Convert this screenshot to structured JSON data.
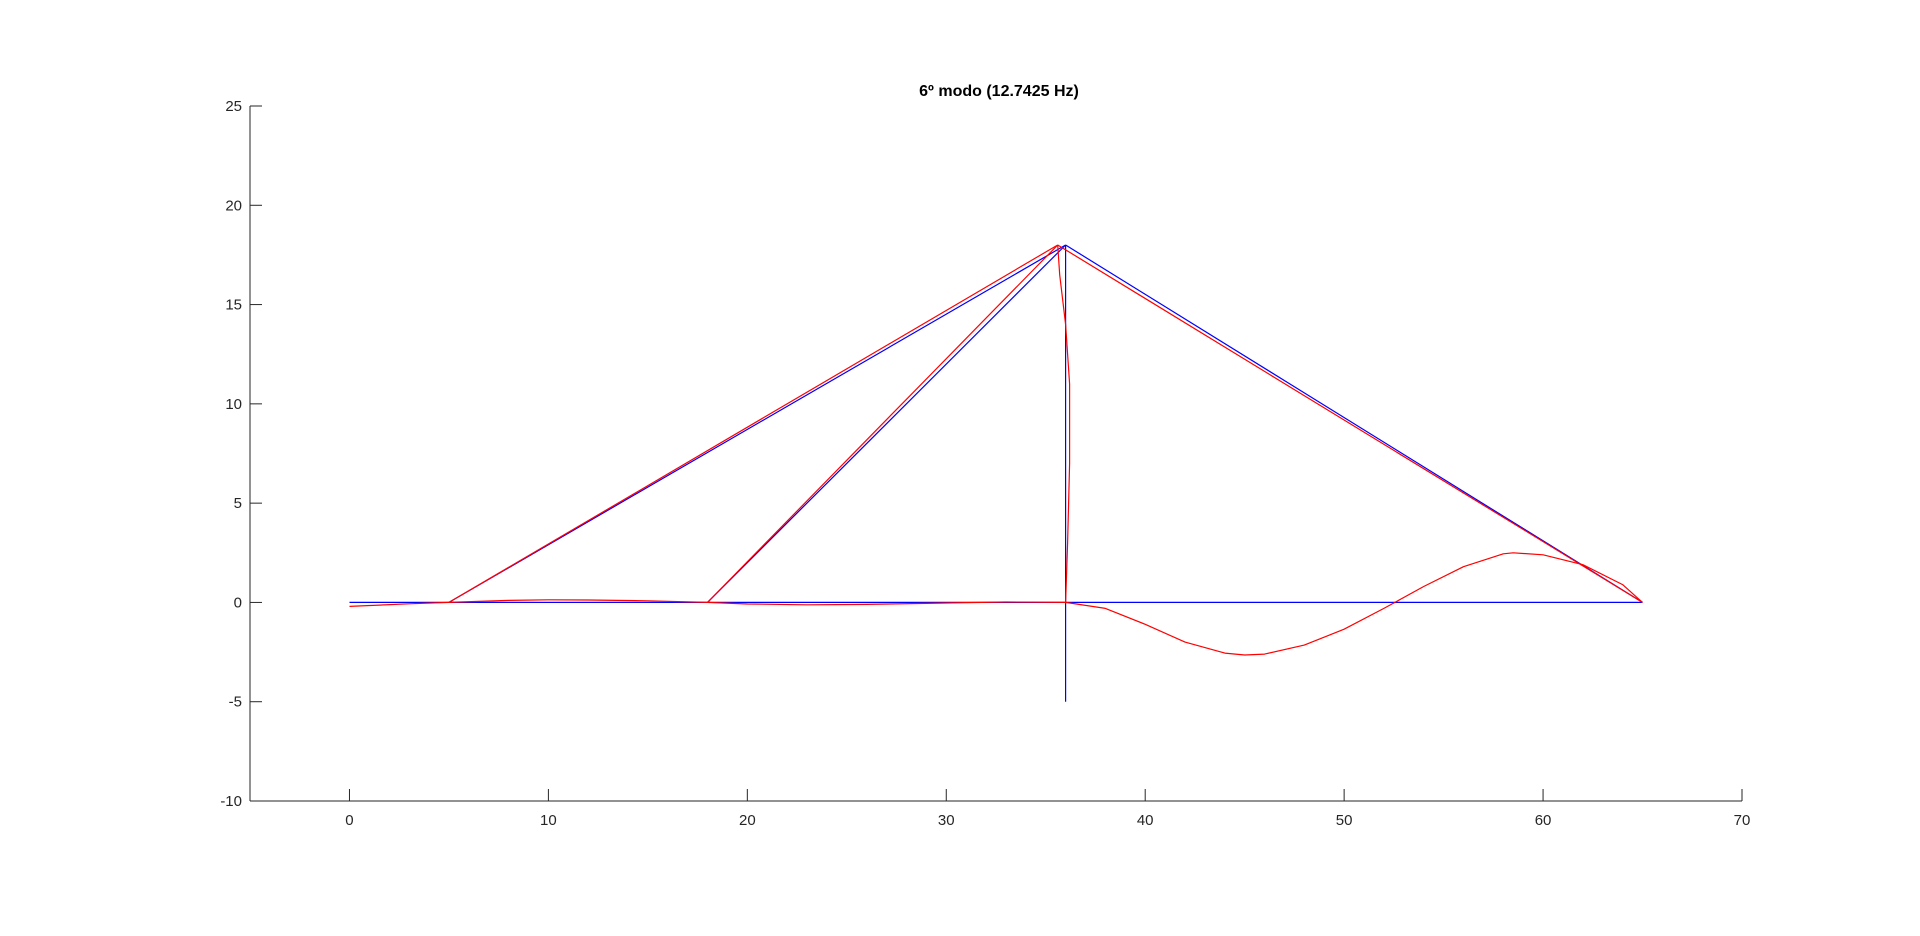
{
  "chart_data": {
    "type": "line",
    "title": "6º modo (12.7425 Hz)",
    "xlabel": "",
    "ylabel": "",
    "xlim": [
      -5,
      70
    ],
    "ylim": [
      -10,
      25
    ],
    "x_ticks": [
      "0",
      "10",
      "20",
      "30",
      "40",
      "50",
      "60",
      "70"
    ],
    "y_ticks": [
      "25",
      "20",
      "15",
      "10",
      "5",
      "0",
      "-5",
      "-10"
    ],
    "grid": false,
    "legend": "none",
    "colors": {
      "undeformed": "#0000ff",
      "mode_shape": "#ff0000",
      "axis": "#262626"
    },
    "series": [
      {
        "role": "undeformed",
        "segments": [
          [
            [
              0,
              0
            ],
            [
              65,
              0
            ]
          ],
          [
            [
              36,
              -5
            ],
            [
              36,
              18
            ]
          ],
          [
            [
              5,
              0
            ],
            [
              36,
              18
            ]
          ],
          [
            [
              18,
              0
            ],
            [
              36,
              18
            ]
          ],
          [
            [
              36,
              18
            ],
            [
              65,
              0
            ]
          ]
        ]
      },
      {
        "role": "mode_shape",
        "segments": [
          [
            [
              0,
              -0.2
            ],
            [
              3,
              -0.07
            ],
            [
              5,
              0
            ],
            [
              8,
              0.1
            ],
            [
              10,
              0.13
            ],
            [
              12,
              0.12
            ],
            [
              15,
              0.08
            ],
            [
              18,
              0
            ]
          ],
          [
            [
              18,
              0
            ],
            [
              20,
              -0.08
            ],
            [
              23,
              -0.12
            ],
            [
              26,
              -0.1
            ],
            [
              29,
              -0.05
            ],
            [
              31,
              -0.01
            ],
            [
              33,
              0.02
            ],
            [
              34.5,
              0.01
            ],
            [
              36,
              0
            ]
          ],
          [
            [
              36,
              0
            ],
            [
              38,
              -0.3
            ],
            [
              40,
              -1.1
            ],
            [
              42,
              -2.0
            ],
            [
              44,
              -2.55
            ],
            [
              45,
              -2.65
            ],
            [
              46,
              -2.6
            ],
            [
              48,
              -2.15
            ],
            [
              50,
              -1.35
            ],
            [
              52,
              -0.3
            ],
            [
              54,
              0.8
            ],
            [
              56,
              1.8
            ],
            [
              58,
              2.45
            ],
            [
              58.5,
              2.5
            ],
            [
              60,
              2.4
            ],
            [
              62,
              1.9
            ],
            [
              64,
              0.9
            ],
            [
              65,
              0
            ]
          ],
          [
            [
              36,
              0
            ],
            [
              36.1,
              3
            ],
            [
              36.2,
              7
            ],
            [
              36.2,
              11
            ],
            [
              36.0,
              14
            ],
            [
              35.7,
              16.5
            ],
            [
              35.6,
              18
            ]
          ],
          [
            [
              5,
              0
            ],
            [
              35.6,
              18
            ]
          ],
          [
            [
              18,
              0
            ],
            [
              35.6,
              18
            ]
          ],
          [
            [
              35.6,
              18
            ],
            [
              65,
              0
            ]
          ]
        ]
      }
    ]
  }
}
